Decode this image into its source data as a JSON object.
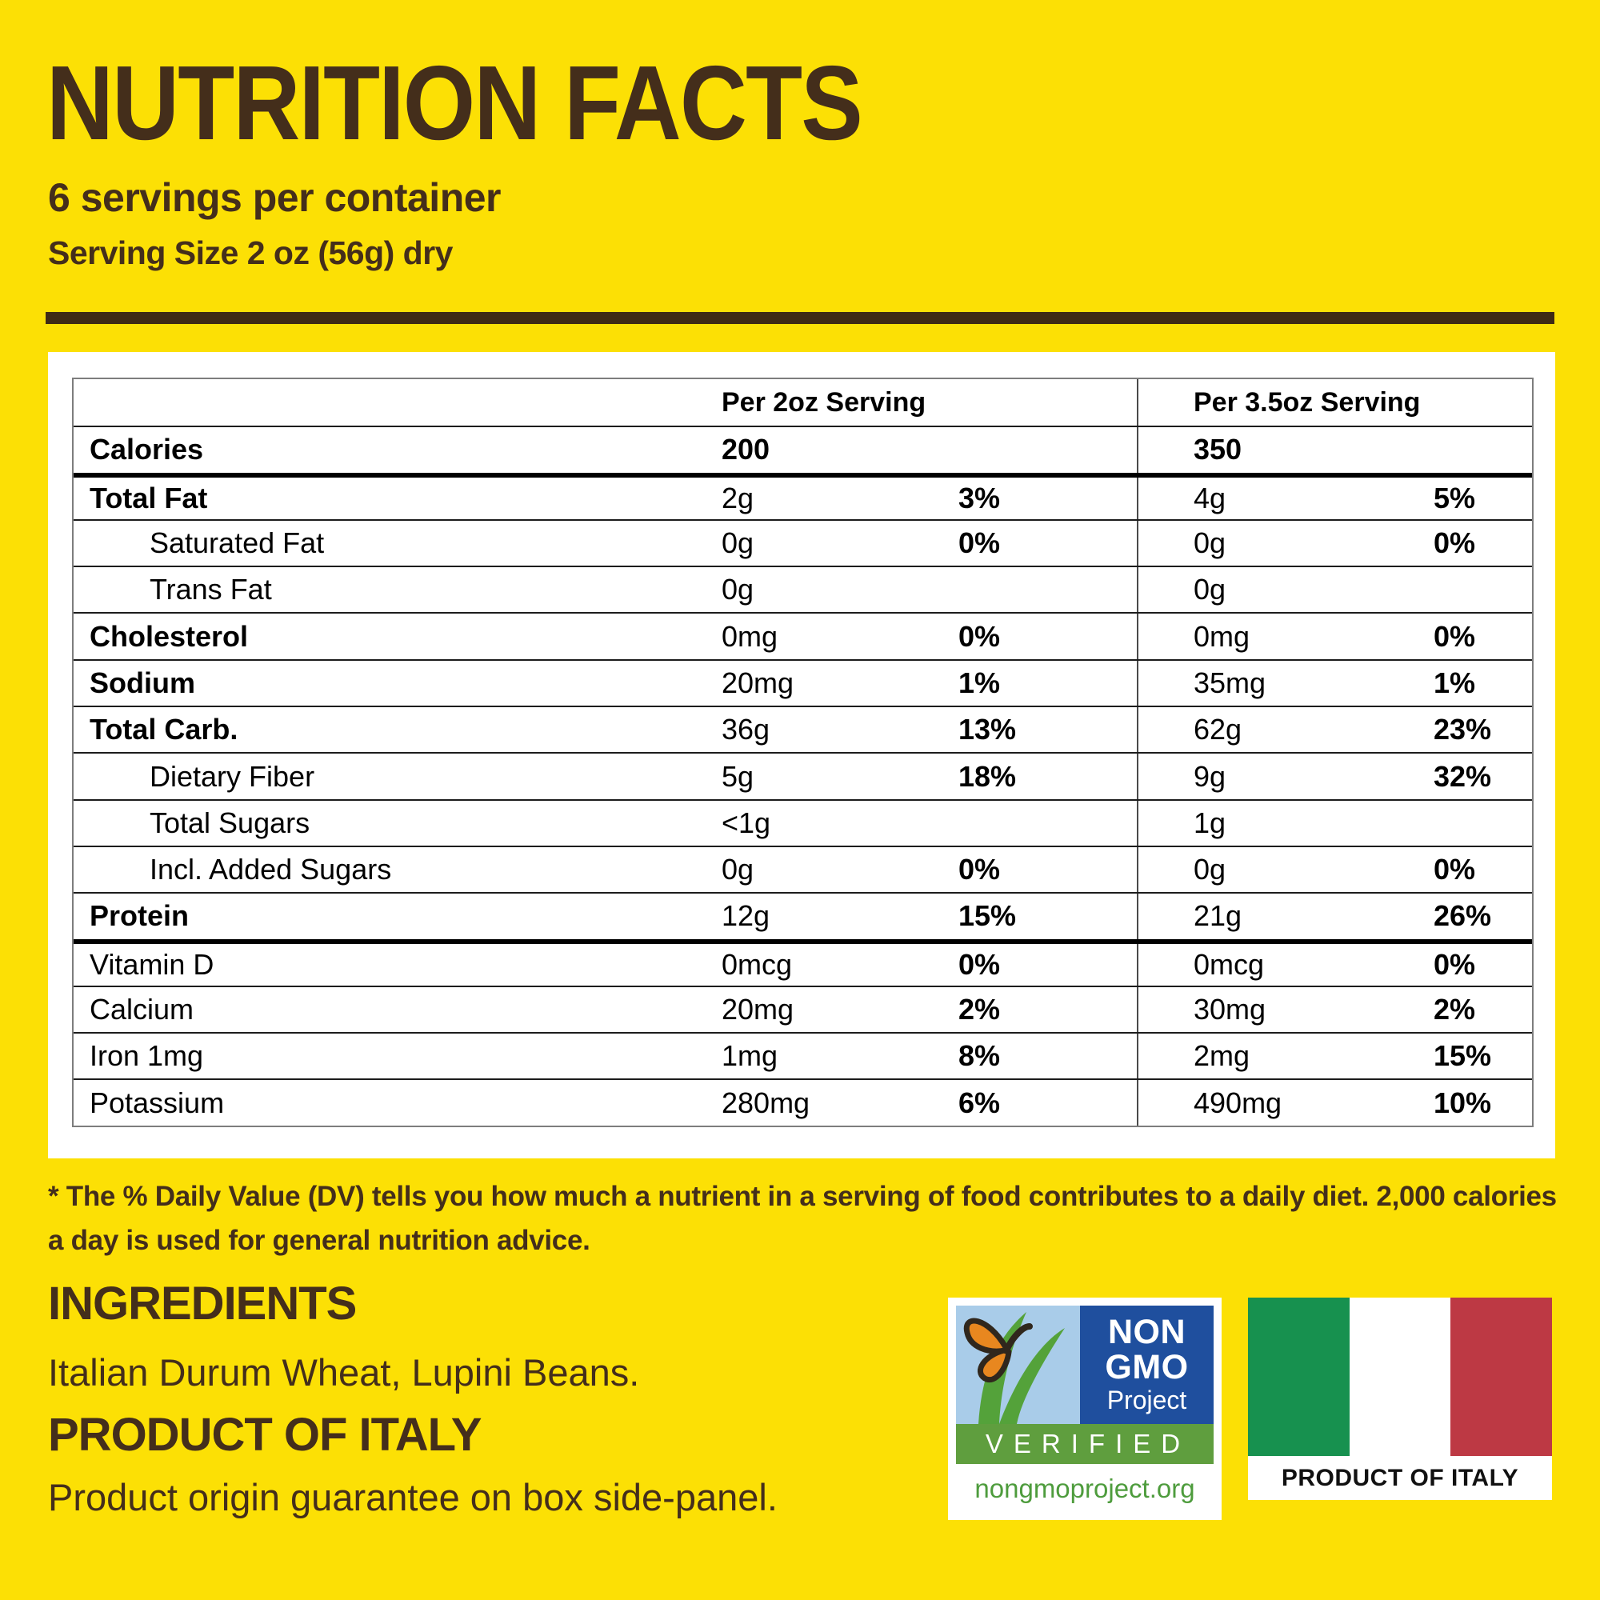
{
  "header": {
    "title": "NUTRITION FACTS",
    "servings_per_container": "6 servings per container",
    "serving_size": "Serving Size 2 oz (56g) dry"
  },
  "table": {
    "col_headers": [
      "Per 2oz Serving",
      "Per 3.5oz Serving"
    ],
    "rows": [
      {
        "label": "Calories",
        "a1": "200",
        "p1": "",
        "a2": "350",
        "p2": "",
        "bold": true,
        "indent": false,
        "thick_top": false,
        "values_bold": true
      },
      {
        "label": "Total Fat",
        "a1": "2g",
        "p1": "3%",
        "a2": "4g",
        "p2": "5%",
        "bold": true,
        "indent": false,
        "thick_top": true,
        "values_bold": false
      },
      {
        "label": "Saturated Fat",
        "a1": "0g",
        "p1": "0%",
        "a2": "0g",
        "p2": "0%",
        "bold": false,
        "indent": true,
        "thick_top": false,
        "values_bold": false
      },
      {
        "label": "Trans Fat",
        "a1": "0g",
        "p1": "",
        "a2": "0g",
        "p2": "",
        "bold": false,
        "indent": true,
        "thick_top": false,
        "values_bold": false
      },
      {
        "label": "Cholesterol",
        "a1": "0mg",
        "p1": "0%",
        "a2": "0mg",
        "p2": "0%",
        "bold": true,
        "indent": false,
        "thick_top": false,
        "values_bold": false
      },
      {
        "label": "Sodium",
        "a1": "20mg",
        "p1": "1%",
        "a2": "35mg",
        "p2": "1%",
        "bold": true,
        "indent": false,
        "thick_top": false,
        "values_bold": false
      },
      {
        "label": "Total Carb.",
        "a1": "36g",
        "p1": "13%",
        "a2": "62g",
        "p2": "23%",
        "bold": true,
        "indent": false,
        "thick_top": false,
        "values_bold": false
      },
      {
        "label": "Dietary Fiber",
        "a1": "5g",
        "p1": "18%",
        "a2": "9g",
        "p2": "32%",
        "bold": false,
        "indent": true,
        "thick_top": false,
        "values_bold": false
      },
      {
        "label": "Total Sugars",
        "a1": "<1g",
        "p1": "",
        "a2": "1g",
        "p2": "",
        "bold": false,
        "indent": true,
        "thick_top": false,
        "values_bold": false
      },
      {
        "label": "Incl. Added Sugars",
        "a1": "0g",
        "p1": "0%",
        "a2": "0g",
        "p2": "0%",
        "bold": false,
        "indent": true,
        "thick_top": false,
        "values_bold": false
      },
      {
        "label": "Protein",
        "a1": "12g",
        "p1": "15%",
        "a2": "21g",
        "p2": "26%",
        "bold": true,
        "indent": false,
        "thick_top": false,
        "values_bold": false
      },
      {
        "label": "Vitamin D",
        "a1": "0mcg",
        "p1": "0%",
        "a2": "0mcg",
        "p2": "0%",
        "bold": false,
        "indent": false,
        "thick_top": true,
        "values_bold": false
      },
      {
        "label": "Calcium",
        "a1": "20mg",
        "p1": "2%",
        "a2": "30mg",
        "p2": "2%",
        "bold": false,
        "indent": false,
        "thick_top": false,
        "values_bold": false
      },
      {
        "label": "Iron 1mg",
        "a1": "1mg",
        "p1": "8%",
        "a2": "2mg",
        "p2": "15%",
        "bold": false,
        "indent": false,
        "thick_top": false,
        "values_bold": false
      },
      {
        "label": "Potassium",
        "a1": "280mg",
        "p1": "6%",
        "a2": "490mg",
        "p2": "10%",
        "bold": false,
        "indent": false,
        "thick_top": false,
        "values_bold": false
      }
    ]
  },
  "footnote": "* The % Daily Value (DV) tells you how much a nutrient in a serving of food contributes to a daily diet. 2,000 calories a day is used for general nutrition advice.",
  "sections": {
    "ingredients_heading": "INGREDIENTS",
    "ingredients_text": "Italian Durum Wheat, Lupini Beans.",
    "origin_heading": "PRODUCT OF ITALY",
    "origin_text": "Product origin guarantee on box side-panel."
  },
  "badges": {
    "non_gmo": {
      "line1": "NON",
      "line2": "GMO",
      "line3": "Project",
      "verified": "VERIFIED",
      "url": "nongmoproject.org"
    },
    "italy_flag": {
      "caption": "PRODUCT OF ITALY"
    }
  },
  "colors": {
    "background_yellow": "#FCE005",
    "text_brown": "#442E1B",
    "rule_brown": "#3F2A15",
    "table_text": "#000000",
    "nongmo_blue": "#1F4F9E",
    "nongmo_sky": "#A9CCE9",
    "nongmo_green_band": "#5F9E3E",
    "nongmo_url_green": "#4E9C3D",
    "butterfly_orange": "#E8871F",
    "flag_green": "#17914F",
    "flag_red": "#BD3944"
  }
}
